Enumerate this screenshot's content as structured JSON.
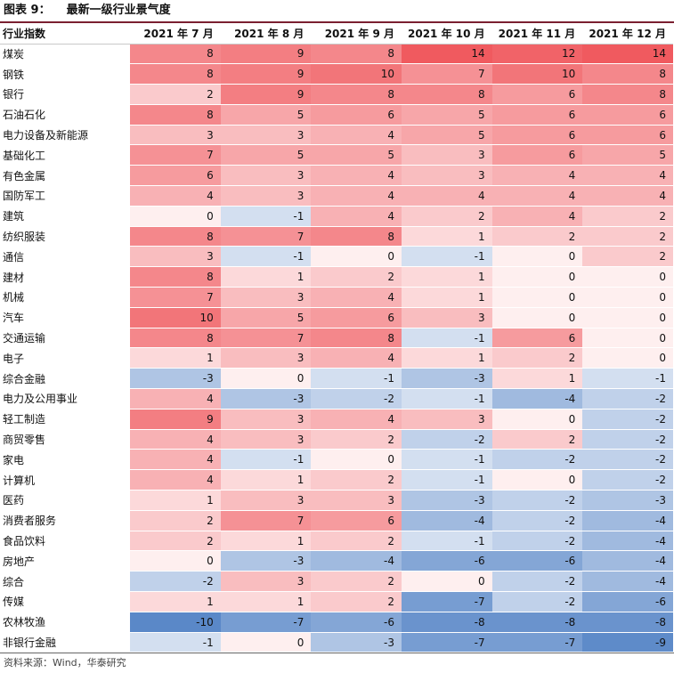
{
  "figure": {
    "label": "图表 9：",
    "title": "最新一级行业景气度"
  },
  "table": {
    "header": [
      "行业指数",
      "2021 年 7 月",
      "2021 年 8 月",
      "2021 年 9 月",
      "2021 年 10 月",
      "2021 年 11 月",
      "2021 年 12 月"
    ],
    "rows": [
      {
        "name": "煤炭",
        "values": [
          8,
          9,
          8,
          14,
          12,
          14
        ]
      },
      {
        "name": "钢铁",
        "values": [
          8,
          9,
          10,
          7,
          10,
          8
        ]
      },
      {
        "name": "银行",
        "values": [
          2,
          9,
          8,
          8,
          6,
          8
        ]
      },
      {
        "name": "石油石化",
        "values": [
          8,
          5,
          6,
          5,
          6,
          6
        ]
      },
      {
        "name": "电力设备及新能源",
        "values": [
          3,
          3,
          4,
          5,
          6,
          6
        ]
      },
      {
        "name": "基础化工",
        "values": [
          7,
          5,
          5,
          3,
          6,
          5
        ]
      },
      {
        "name": "有色金属",
        "values": [
          6,
          3,
          4,
          3,
          4,
          4
        ]
      },
      {
        "name": "国防军工",
        "values": [
          4,
          3,
          4,
          4,
          4,
          4
        ]
      },
      {
        "name": "建筑",
        "values": [
          0,
          -1,
          4,
          2,
          4,
          2
        ]
      },
      {
        "name": "纺织服装",
        "values": [
          8,
          7,
          8,
          1,
          2,
          2
        ]
      },
      {
        "name": "通信",
        "values": [
          3,
          -1,
          0,
          -1,
          0,
          2
        ]
      },
      {
        "name": "建材",
        "values": [
          8,
          1,
          2,
          1,
          0,
          0
        ]
      },
      {
        "name": "机械",
        "values": [
          7,
          3,
          4,
          1,
          0,
          0
        ]
      },
      {
        "name": "汽车",
        "values": [
          10,
          5,
          6,
          3,
          0,
          0
        ]
      },
      {
        "name": "交通运输",
        "values": [
          8,
          7,
          8,
          -1,
          6,
          0
        ]
      },
      {
        "name": "电子",
        "values": [
          1,
          3,
          4,
          1,
          2,
          0
        ]
      },
      {
        "name": "综合金融",
        "values": [
          -3,
          0,
          -1,
          -3,
          1,
          -1
        ]
      },
      {
        "name": "电力及公用事业",
        "values": [
          4,
          -3,
          -2,
          -1,
          -4,
          -2
        ]
      },
      {
        "name": "轻工制造",
        "values": [
          9,
          3,
          4,
          3,
          0,
          -2
        ]
      },
      {
        "name": "商贸零售",
        "values": [
          4,
          3,
          2,
          -2,
          2,
          -2
        ]
      },
      {
        "name": "家电",
        "values": [
          4,
          -1,
          0,
          -1,
          -2,
          -2
        ]
      },
      {
        "name": "计算机",
        "values": [
          4,
          1,
          2,
          -1,
          0,
          -2
        ]
      },
      {
        "name": "医药",
        "values": [
          1,
          3,
          3,
          -3,
          -2,
          -3
        ]
      },
      {
        "name": "消费者服务",
        "values": [
          2,
          7,
          6,
          -4,
          -2,
          -4
        ]
      },
      {
        "name": "食品饮料",
        "values": [
          2,
          1,
          2,
          -1,
          -2,
          -4
        ]
      },
      {
        "name": "房地产",
        "values": [
          0,
          -3,
          -4,
          -6,
          -6,
          -4
        ]
      },
      {
        "name": "综合",
        "values": [
          -2,
          3,
          2,
          0,
          -2,
          -4
        ]
      },
      {
        "name": "传媒",
        "values": [
          1,
          1,
          2,
          -7,
          -2,
          -6
        ]
      },
      {
        "name": "农林牧渔",
        "values": [
          -10,
          -7,
          -6,
          -8,
          -8,
          -8
        ]
      },
      {
        "name": "非银行金融",
        "values": [
          -1,
          0,
          -3,
          -7,
          -7,
          -9
        ]
      }
    ]
  },
  "colors": {
    "positive_max": "#f05a5f",
    "neutral": "#ffffff",
    "negative_max": "#5a88c8"
  },
  "source": "资料来源：Wind，华泰研究"
}
